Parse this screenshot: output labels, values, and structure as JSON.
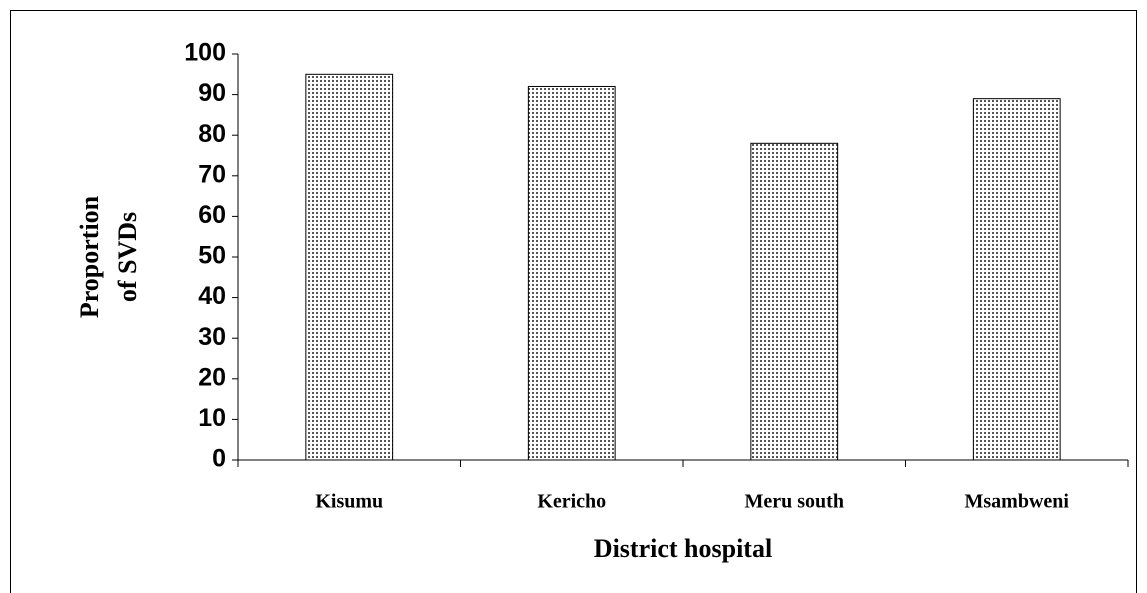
{
  "chart_data": {
    "type": "bar",
    "x_label": "District hospital",
    "y_label": [
      "Proportion",
      "of   SVDs"
    ],
    "categories": [
      "Kisumu",
      "Kericho",
      "Meru south",
      "Msambweni"
    ],
    "values": [
      95,
      92,
      78,
      89
    ],
    "color": "#555555",
    "ylim": [
      0,
      100
    ],
    "yticks": [
      0,
      10,
      20,
      30,
      40,
      50,
      60,
      70,
      80,
      90,
      100
    ],
    "grid": false
  }
}
